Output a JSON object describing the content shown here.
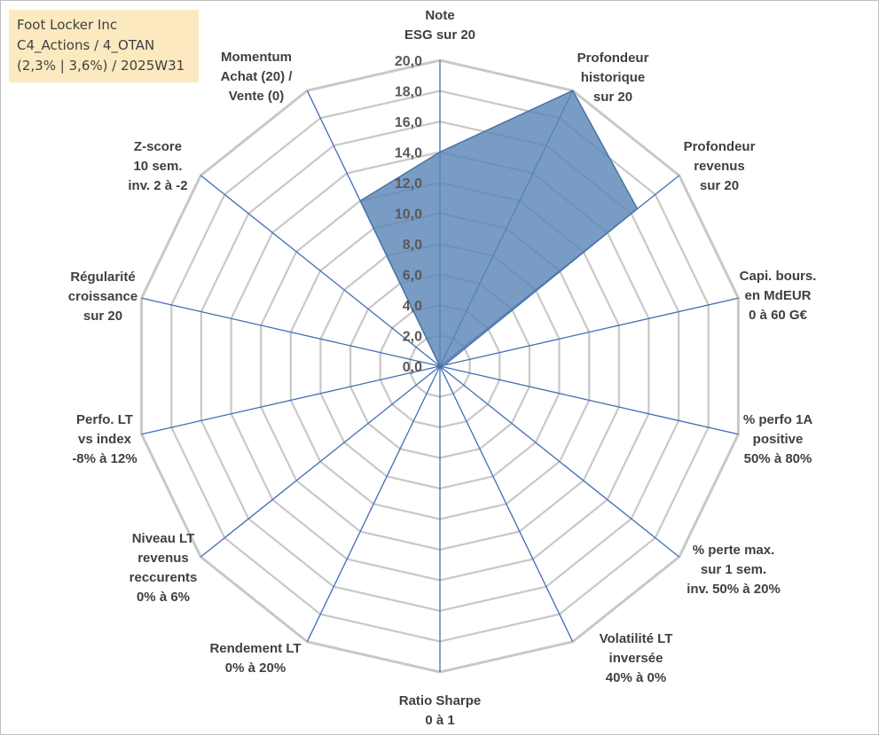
{
  "header": {
    "lines": [
      "Foot Locker Inc",
      "C4_Actions / 4_OTAN",
      "(2,3% | 3,6%) / 2025W31"
    ]
  },
  "colors": {
    "fill": "#5b86b8",
    "stroke": "#4a72a6",
    "spoke": "#3f6db5",
    "grid": "#c8c8c8",
    "title_bg": "#fde9c0"
  },
  "chart_data": {
    "type": "radar",
    "rmin": 0,
    "rmax": 20,
    "tick_step": 2,
    "ticks": [
      "0,0",
      "2,0",
      "4,0",
      "6,0",
      "8,0",
      "10,0",
      "12,0",
      "14,0",
      "16,0",
      "18,0",
      "20,0"
    ],
    "axes": [
      {
        "label": [
          "Note",
          "ESG sur 20"
        ],
        "value": 14.0
      },
      {
        "label": [
          "Profondeur",
          "historique",
          "sur 20"
        ],
        "value": 20.0
      },
      {
        "label": [
          "Profondeur",
          "revenus",
          "sur 20"
        ],
        "value": 16.5
      },
      {
        "label": [
          "Capi. bours.",
          "en MdEUR",
          "0 à 60 G€"
        ],
        "value": 0.3
      },
      {
        "label": [
          "% perfo 1A",
          "positive",
          "50% à 80%"
        ],
        "value": 0.0
      },
      {
        "label": [
          "% perte max.",
          "sur 1 sem.",
          "inv. 50% à 20%"
        ],
        "value": 0.0
      },
      {
        "label": [
          "Volatilité LT",
          "inversée",
          "40% à 0%"
        ],
        "value": 0.0
      },
      {
        "label": [
          "Ratio Sharpe",
          "0 à 1"
        ],
        "value": 0.0
      },
      {
        "label": [
          "Rendement LT",
          "0% à 20%"
        ],
        "value": 0.0
      },
      {
        "label": [
          "Niveau LT",
          "revenus",
          "reccurents",
          "0% à 6%"
        ],
        "value": 0.0
      },
      {
        "label": [
          "Perfo. LT",
          "vs index",
          "-8% à 12%"
        ],
        "value": 0.0
      },
      {
        "label": [
          "Régularité",
          "croissance",
          "sur 20"
        ],
        "value": 0.0
      },
      {
        "label": [
          "Z-score",
          "10 sem.",
          "inv. 2 à -2"
        ],
        "value": 0.0
      },
      {
        "label": [
          "Momentum",
          "Achat (20) /",
          "Vente (0)"
        ],
        "value": 12.0
      }
    ]
  }
}
